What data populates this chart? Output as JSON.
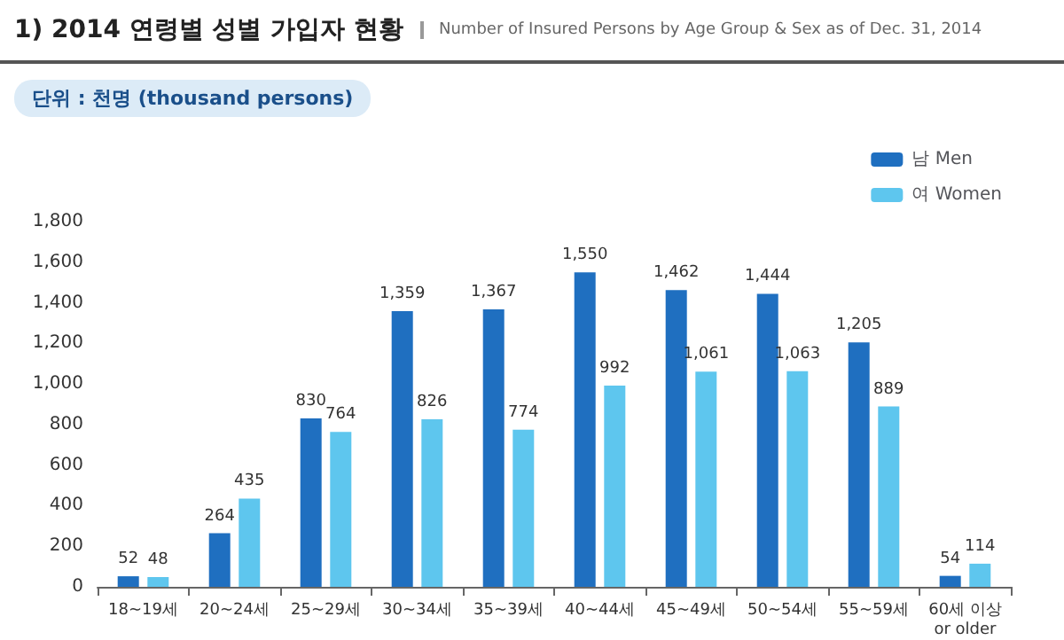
{
  "chart_data": {
    "type": "bar",
    "title": "1) 2014 연령별 성별 가입자 현황",
    "subtitle": "Number of Insured Persons by Age Group & Sex as of Dec. 31, 2014",
    "annotations": [
      "단위 : 천명 (thousand persons)"
    ],
    "categories": [
      "18~19세",
      "20~24세",
      "25~29세",
      "30~34세",
      "35~39세",
      "40~44세",
      "45~49세",
      "50~54세",
      "55~59세",
      "60세 이상\nor older"
    ],
    "series": [
      {
        "name": "남 Men",
        "color": "#1f6fc0",
        "values": [
          52,
          264,
          830,
          1359,
          1367,
          1550,
          1462,
          1444,
          1205,
          54
        ],
        "value_labels": [
          "52",
          "264",
          "830",
          "1,359",
          "1,367",
          "1,550",
          "1,462",
          "1,444",
          "1,205",
          "54"
        ]
      },
      {
        "name": "여 Women",
        "color": "#5ec6ee",
        "values": [
          48,
          435,
          764,
          826,
          774,
          992,
          1061,
          1063,
          889,
          114
        ],
        "value_labels": [
          "48",
          "435",
          "764",
          "826",
          "774",
          "992",
          "1,061",
          "1,063",
          "889",
          "114"
        ]
      }
    ],
    "ylim": [
      0,
      1800
    ],
    "yticks": [
      0,
      {
        "value": 200,
        "label": "200"
      },
      {
        "value": 400,
        "label": "400"
      },
      {
        "value": 600,
        "label": "600"
      },
      {
        "value": 800,
        "label": "800"
      },
      {
        "value": 1000,
        "label": "1,000"
      },
      {
        "value": 1200,
        "label": "1,200"
      },
      {
        "value": 1400,
        "label": "1,400"
      },
      {
        "value": 1600,
        "label": "1,600"
      },
      {
        "value": 1800,
        "label": "1,800"
      }
    ],
    "grid": false,
    "legend": "top right"
  }
}
